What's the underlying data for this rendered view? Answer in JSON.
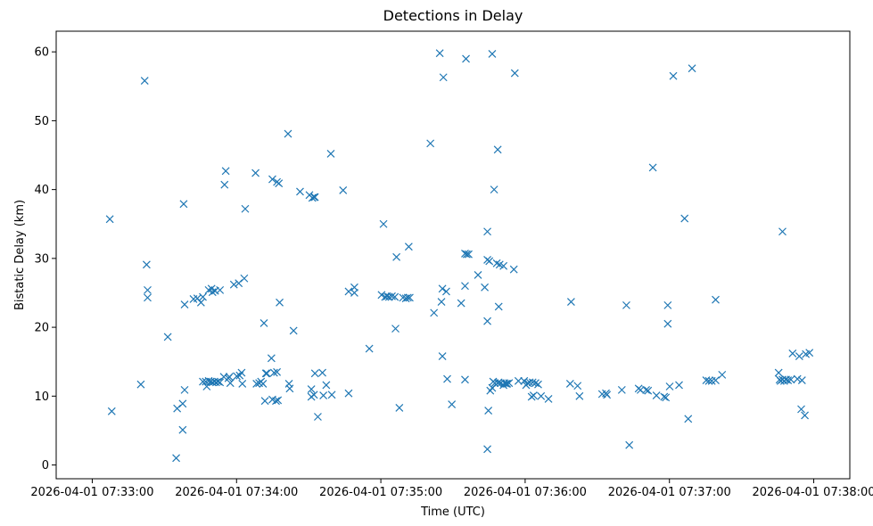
{
  "chart_data": {
    "type": "scatter",
    "title": "Detections in Delay",
    "xlabel": "Time (UTC)",
    "ylabel": "Bistatic Delay (km)",
    "marker": "x",
    "color": "#1f77b4",
    "grid": false,
    "x_unit": "seconds since 2026-04-01 07:33:00",
    "xlim": [
      -15,
      315
    ],
    "ylim": [
      -2,
      63
    ],
    "x_ticks": [
      {
        "value": 0,
        "label": "2026-04-01 07:33:00"
      },
      {
        "value": 60,
        "label": "2026-04-01 07:34:00"
      },
      {
        "value": 120,
        "label": "2026-04-01 07:35:00"
      },
      {
        "value": 180,
        "label": "2026-04-01 07:36:00"
      },
      {
        "value": 240,
        "label": "2026-04-01 07:37:00"
      },
      {
        "value": 300,
        "label": "2026-04-01 07:38:00"
      }
    ],
    "y_ticks": [
      {
        "value": 0,
        "label": "0"
      },
      {
        "value": 10,
        "label": "10"
      },
      {
        "value": 20,
        "label": "20"
      },
      {
        "value": 30,
        "label": "30"
      },
      {
        "value": 40,
        "label": "40"
      },
      {
        "value": 50,
        "label": "50"
      },
      {
        "value": 60,
        "label": "60"
      }
    ],
    "points": [
      [
        7.3,
        35.7
      ],
      [
        8.1,
        7.8
      ],
      [
        20.2,
        11.7
      ],
      [
        21.8,
        55.8
      ],
      [
        22.6,
        29.1
      ],
      [
        23.0,
        25.4
      ],
      [
        23.0,
        24.3
      ],
      [
        31.4,
        18.6
      ],
      [
        34.9,
        1.0
      ],
      [
        35.3,
        8.2
      ],
      [
        38.0,
        37.9
      ],
      [
        37.6,
        5.1
      ],
      [
        37.6,
        8.9
      ],
      [
        38.4,
        10.9
      ],
      [
        38.4,
        23.3
      ],
      [
        42.1,
        24.1
      ],
      [
        43.7,
        24.2
      ],
      [
        45.2,
        23.6
      ],
      [
        46.0,
        24.4
      ],
      [
        46.0,
        12.1
      ],
      [
        47.2,
        12.1
      ],
      [
        47.6,
        11.4
      ],
      [
        48.4,
        12.2
      ],
      [
        49.2,
        12.1
      ],
      [
        50.0,
        12.0
      ],
      [
        50.8,
        12.1
      ],
      [
        51.5,
        12.0
      ],
      [
        52.3,
        12.1
      ],
      [
        53.1,
        12.0
      ],
      [
        48.4,
        25.4
      ],
      [
        49.6,
        25.6
      ],
      [
        50.0,
        25.1
      ],
      [
        51.1,
        25.3
      ],
      [
        53.1,
        25.4
      ],
      [
        54.7,
        12.8
      ],
      [
        55.0,
        40.7
      ],
      [
        55.5,
        42.7
      ],
      [
        56.6,
        12.6
      ],
      [
        57.0,
        12.8
      ],
      [
        57.4,
        11.9
      ],
      [
        58.9,
        26.2
      ],
      [
        60.1,
        12.9
      ],
      [
        60.9,
        26.4
      ],
      [
        61.3,
        13.0
      ],
      [
        62.1,
        13.4
      ],
      [
        62.4,
        11.8
      ],
      [
        63.2,
        27.1
      ],
      [
        63.6,
        37.2
      ],
      [
        67.9,
        42.4
      ],
      [
        68.3,
        11.8
      ],
      [
        69.4,
        11.9
      ],
      [
        70.2,
        12.1
      ],
      [
        71.0,
        11.8
      ],
      [
        71.4,
        20.6
      ],
      [
        71.8,
        9.3
      ],
      [
        72.2,
        13.3
      ],
      [
        72.6,
        13.3
      ],
      [
        74.5,
        15.5
      ],
      [
        74.9,
        9.5
      ],
      [
        74.9,
        41.5
      ],
      [
        75.6,
        13.4
      ],
      [
        76.8,
        13.5
      ],
      [
        76.4,
        9.3
      ],
      [
        77.2,
        9.4
      ],
      [
        76.8,
        41.1
      ],
      [
        77.6,
        40.9
      ],
      [
        77.9,
        23.6
      ],
      [
        81.4,
        48.1
      ],
      [
        81.8,
        11.8
      ],
      [
        82.1,
        11.1
      ],
      [
        83.7,
        19.5
      ],
      [
        86.4,
        39.7
      ],
      [
        90.3,
        39.2
      ],
      [
        91.5,
        38.8
      ],
      [
        92.2,
        38.9
      ],
      [
        92.6,
        38.9
      ],
      [
        91.1,
        11.0
      ],
      [
        91.1,
        9.9
      ],
      [
        92.2,
        10.2
      ],
      [
        92.6,
        13.3
      ],
      [
        93.8,
        7.0
      ],
      [
        95.7,
        13.4
      ],
      [
        96.1,
        10.1
      ],
      [
        97.3,
        11.6
      ],
      [
        99.2,
        45.2
      ],
      [
        99.6,
        10.2
      ],
      [
        104.3,
        39.9
      ],
      [
        106.6,
        25.2
      ],
      [
        106.6,
        10.4
      ],
      [
        109.0,
        25.0
      ],
      [
        109.0,
        25.8
      ],
      [
        115.2,
        16.9
      ],
      [
        120.3,
        24.7
      ],
      [
        121.1,
        35.0
      ],
      [
        121.8,
        24.4
      ],
      [
        122.6,
        24.5
      ],
      [
        123.4,
        24.4
      ],
      [
        124.6,
        24.5
      ],
      [
        125.8,
        24.4
      ],
      [
        126.1,
        19.8
      ],
      [
        126.5,
        30.2
      ],
      [
        127.7,
        8.3
      ],
      [
        129.2,
        24.3
      ],
      [
        130.4,
        24.2
      ],
      [
        131.2,
        24.3
      ],
      [
        131.6,
        31.7
      ],
      [
        132.0,
        24.3
      ],
      [
        140.6,
        46.7
      ],
      [
        142.1,
        22.1
      ],
      [
        144.5,
        59.8
      ],
      [
        145.2,
        23.7
      ],
      [
        145.6,
        25.6
      ],
      [
        145.6,
        15.8
      ],
      [
        146.0,
        56.3
      ],
      [
        147.2,
        25.2
      ],
      [
        147.6,
        12.5
      ],
      [
        149.5,
        8.8
      ],
      [
        153.4,
        23.5
      ],
      [
        155.0,
        12.4
      ],
      [
        155.0,
        26.0
      ],
      [
        155.0,
        30.7
      ],
      [
        155.4,
        59.0
      ],
      [
        155.7,
        30.6
      ],
      [
        156.5,
        30.6
      ],
      [
        160.4,
        27.6
      ],
      [
        163.2,
        25.8
      ],
      [
        164.3,
        33.9
      ],
      [
        164.3,
        29.8
      ],
      [
        164.3,
        20.9
      ],
      [
        164.7,
        7.9
      ],
      [
        164.3,
        2.3
      ],
      [
        165.1,
        29.6
      ],
      [
        165.5,
        10.8
      ],
      [
        166.3,
        59.7
      ],
      [
        166.3,
        11.2
      ],
      [
        166.7,
        12.1
      ],
      [
        167.1,
        40.0
      ],
      [
        167.4,
        11.9
      ],
      [
        168.2,
        29.3
      ],
      [
        168.6,
        11.9
      ],
      [
        168.6,
        45.8
      ],
      [
        169.0,
        12.0
      ],
      [
        169.0,
        23.0
      ],
      [
        169.4,
        29.1
      ],
      [
        169.8,
        11.9
      ],
      [
        171.0,
        28.9
      ],
      [
        171.0,
        11.6
      ],
      [
        171.4,
        11.9
      ],
      [
        172.1,
        11.8
      ],
      [
        172.5,
        11.8
      ],
      [
        173.3,
        11.9
      ],
      [
        175.7,
        56.9
      ],
      [
        175.3,
        28.4
      ],
      [
        177.2,
        12.2
      ],
      [
        179.6,
        12.2
      ],
      [
        180.4,
        11.6
      ],
      [
        181.1,
        11.9
      ],
      [
        181.9,
        12.0
      ],
      [
        182.7,
        9.9
      ],
      [
        183.1,
        12.0
      ],
      [
        183.5,
        10.1
      ],
      [
        184.3,
        11.9
      ],
      [
        185.4,
        11.7
      ],
      [
        186.6,
        10.0
      ],
      [
        189.7,
        9.6
      ],
      [
        198.7,
        11.8
      ],
      [
        199.1,
        23.7
      ],
      [
        201.8,
        11.5
      ],
      [
        202.6,
        10.0
      ],
      [
        212.0,
        10.3
      ],
      [
        213.6,
        10.4
      ],
      [
        214.0,
        10.2
      ],
      [
        220.2,
        10.9
      ],
      [
        222.1,
        23.2
      ],
      [
        223.3,
        2.9
      ],
      [
        227.2,
        11.1
      ],
      [
        228.0,
        10.9
      ],
      [
        230.3,
        10.9
      ],
      [
        231.1,
        10.8
      ],
      [
        233.1,
        43.2
      ],
      [
        234.6,
        10.1
      ],
      [
        237.8,
        9.9
      ],
      [
        238.5,
        9.8
      ],
      [
        239.3,
        23.2
      ],
      [
        239.3,
        20.5
      ],
      [
        240.1,
        11.4
      ],
      [
        241.6,
        56.5
      ],
      [
        244.0,
        11.6
      ],
      [
        246.3,
        35.8
      ],
      [
        247.8,
        6.7
      ],
      [
        249.4,
        57.6
      ],
      [
        255.3,
        12.3
      ],
      [
        256.4,
        12.2
      ],
      [
        257.6,
        12.2
      ],
      [
        259.2,
        24.0
      ],
      [
        259.2,
        12.3
      ],
      [
        261.9,
        13.1
      ],
      [
        285.4,
        13.4
      ],
      [
        285.8,
        12.4
      ],
      [
        286.2,
        12.2
      ],
      [
        287.0,
        33.9
      ],
      [
        287.0,
        12.4
      ],
      [
        287.7,
        12.2
      ],
      [
        288.5,
        12.4
      ],
      [
        289.3,
        12.3
      ],
      [
        290.5,
        12.4
      ],
      [
        291.2,
        16.2
      ],
      [
        293.2,
        12.5
      ],
      [
        294.0,
        15.8
      ],
      [
        294.8,
        8.1
      ],
      [
        295.1,
        12.3
      ],
      [
        296.3,
        7.2
      ],
      [
        296.7,
        16.1
      ],
      [
        298.2,
        16.3
      ]
    ]
  }
}
